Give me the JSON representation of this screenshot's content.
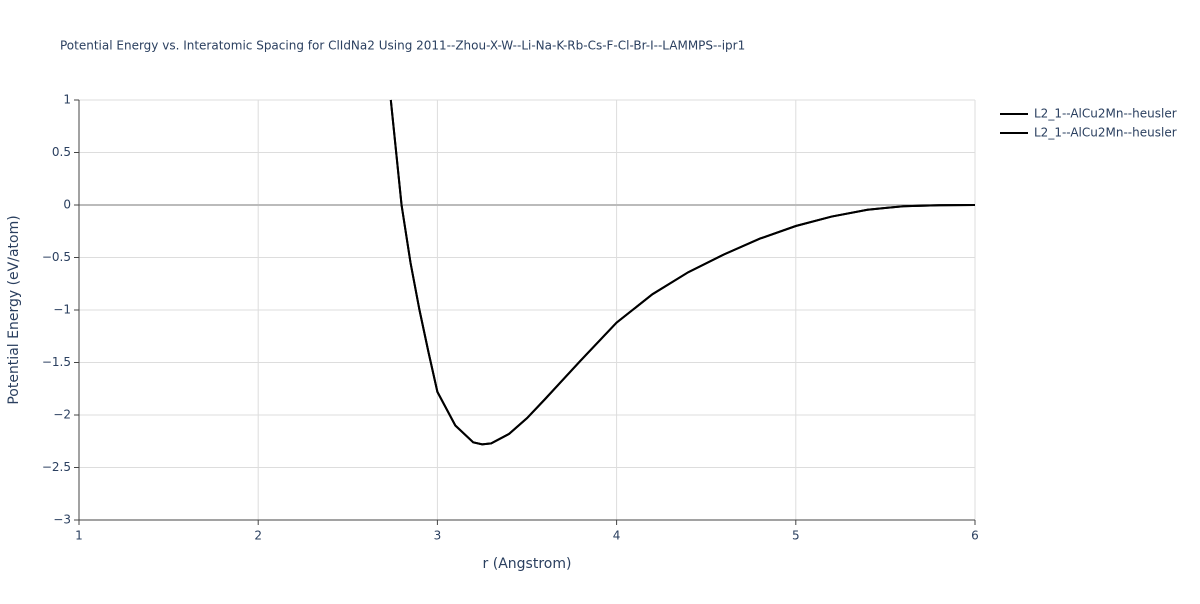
{
  "chart_data": {
    "type": "line",
    "title": "Potential Energy vs. Interatomic Spacing for ClIdNa2 Using 2011--Zhou-X-W--Li-Na-K-Rb-Cs-F-Cl-Br-I--LAMMPS--ipr1",
    "x_label": "r (Angstrom)",
    "y_label": "Potential Energy (eV/atom)",
    "x": [
      2.74,
      2.8,
      2.85,
      2.9,
      2.95,
      3.0,
      3.1,
      3.2,
      3.25,
      3.3,
      3.4,
      3.5,
      3.6,
      3.8,
      4.0,
      4.2,
      4.4,
      4.6,
      4.8,
      5.0,
      5.2,
      5.4,
      5.6,
      5.8,
      6.0
    ],
    "series": [
      {
        "name": "L2_1--AlCu2Mn--heusler",
        "color": "#000000",
        "values": [
          1.0,
          0.0,
          -0.55,
          -1.0,
          -1.4,
          -1.78,
          -2.1,
          -2.26,
          -2.28,
          -2.27,
          -2.18,
          -2.03,
          -1.85,
          -1.48,
          -1.12,
          -0.85,
          -0.64,
          -0.47,
          -0.32,
          -0.2,
          -0.11,
          -0.045,
          -0.012,
          -0.002,
          0.0
        ]
      },
      {
        "name": "L2_1--AlCu2Mn--heusler",
        "color": "#000000",
        "values": [
          1.0,
          0.0,
          -0.55,
          -1.0,
          -1.4,
          -1.78,
          -2.1,
          -2.26,
          -2.28,
          -2.27,
          -2.18,
          -2.03,
          -1.85,
          -1.48,
          -1.12,
          -0.85,
          -0.64,
          -0.47,
          -0.32,
          -0.2,
          -0.11,
          -0.045,
          -0.012,
          -0.002,
          0.0
        ]
      }
    ],
    "xlim": [
      1,
      6
    ],
    "xticks": [
      1,
      2,
      3,
      4,
      5,
      6
    ],
    "ylim": [
      -3,
      1
    ],
    "yticks": [
      1,
      0.5,
      0,
      {
        "value": -0.5,
        "label": "−0.5"
      },
      {
        "value": -1,
        "label": "−1"
      },
      {
        "value": -1.5,
        "label": "−1.5"
      },
      {
        "value": -2,
        "label": "−2"
      },
      {
        "value": -2.5,
        "label": "−2.5"
      },
      {
        "value": -3,
        "label": "−3"
      }
    ],
    "grid": true,
    "legend": "top-right"
  }
}
